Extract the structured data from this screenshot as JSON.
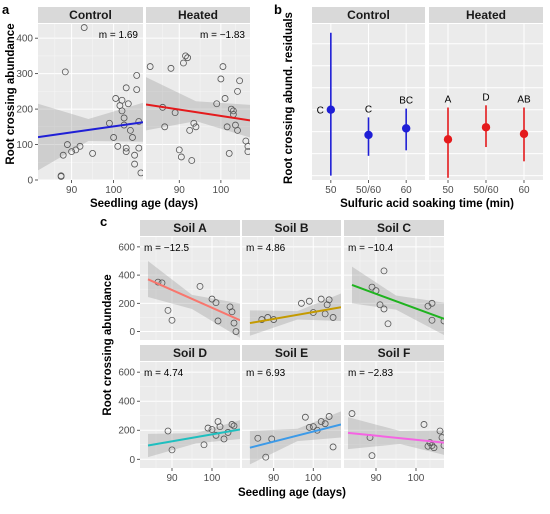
{
  "panel_labels": {
    "a": "a",
    "b": "b",
    "c": "c"
  },
  "colors": {
    "control": "#1f1fd6",
    "heated": "#e41a1c",
    "soil_A": "#f8766d",
    "soil_B": "#c49a00",
    "soil_C": "#1fb31f",
    "soil_D": "#1fbfbf",
    "soil_E": "#3c9ae8",
    "soil_F": "#f564e3"
  },
  "chart_data": [
    {
      "id": "a",
      "type": "scatter",
      "ylabel": "Root crossing abundance",
      "xlabel": "Seedling age (days)",
      "xlim": [
        82,
        107
      ],
      "ylim": [
        0,
        440
      ],
      "xticks": [
        90,
        100
      ],
      "yticks": [
        0,
        100,
        200,
        300,
        400
      ],
      "facets": [
        {
          "name": "Control",
          "annotation": "m = 1.69",
          "line": {
            "x0": 82,
            "y0": 121,
            "x1": 107,
            "y1": 163
          },
          "band_upper": [
            [
              82,
              215
            ],
            [
              94,
              172
            ],
            [
              107,
              218
            ]
          ],
          "band_lower": [
            [
              82,
              27
            ],
            [
              94,
              110
            ],
            [
              107,
              108
            ]
          ],
          "points": [
            [
              87.5,
              12
            ],
            [
              87.5,
              10
            ],
            [
              88,
              70
            ],
            [
              88.5,
              305
            ],
            [
              89,
              100
            ],
            [
              90,
              80
            ],
            [
              91,
              85
            ],
            [
              92,
              95
            ],
            [
              93,
              430
            ],
            [
              95,
              75
            ],
            [
              99,
              160
            ],
            [
              100,
              120
            ],
            [
              100.5,
              230
            ],
            [
              101,
              95
            ],
            [
              101.5,
              210
            ],
            [
              102,
              225
            ],
            [
              102,
              195
            ],
            [
              102.5,
              175
            ],
            [
              102.5,
              155
            ],
            [
              103,
              90
            ],
            [
              103,
              80
            ],
            [
              103,
              260
            ],
            [
              103.5,
              215
            ],
            [
              104,
              140
            ],
            [
              104.5,
              120
            ],
            [
              105,
              70
            ],
            [
              105,
              45
            ],
            [
              105.5,
              295
            ],
            [
              105.5,
              255
            ],
            [
              106,
              165
            ],
            [
              106,
              90
            ],
            [
              106.5,
              20
            ]
          ]
        },
        {
          "name": "Heated",
          "annotation": "m = −1.83",
          "line": {
            "x0": 82,
            "y0": 213,
            "x1": 107,
            "y1": 168
          },
          "band_upper": [
            [
              82,
              290
            ],
            [
              94,
              222
            ],
            [
              107,
              212
            ]
          ],
          "band_lower": [
            [
              82,
              140
            ],
            [
              94,
              166
            ],
            [
              107,
              120
            ]
          ],
          "points": [
            [
              83,
              320
            ],
            [
              86,
              205
            ],
            [
              86.5,
              150
            ],
            [
              88,
              315
            ],
            [
              89,
              190
            ],
            [
              90,
              85
            ],
            [
              90.5,
              65
            ],
            [
              91,
              330
            ],
            [
              91.5,
              350
            ],
            [
              92,
              345
            ],
            [
              92.5,
              140
            ],
            [
              93,
              55
            ],
            [
              93.5,
              160
            ],
            [
              94,
              150
            ],
            [
              99,
              215
            ],
            [
              100,
              285
            ],
            [
              100.5,
              320
            ],
            [
              101,
              230
            ],
            [
              101.5,
              150
            ],
            [
              102,
              75
            ],
            [
              102.5,
              200
            ],
            [
              103,
              195
            ],
            [
              103,
              185
            ],
            [
              103.5,
              155
            ],
            [
              104,
              140
            ],
            [
              104,
              250
            ],
            [
              104.5,
              280
            ],
            [
              106,
              110
            ],
            [
              106.5,
              95
            ],
            [
              106.5,
              80
            ]
          ]
        }
      ]
    },
    {
      "id": "b",
      "type": "pointrange",
      "ylabel": "Root crossing abund. residuals",
      "xlabel": "Sulfuric acid soaking time (min)",
      "ylim": [
        -2.2,
        4.9
      ],
      "xticks": [
        "50",
        "50/60",
        "60"
      ],
      "facets": [
        {
          "name": "Control",
          "color_key": "control",
          "points": [
            {
              "x": "50",
              "y": 1.0,
              "low": -2.0,
              "high": 4.5,
              "letter": "C"
            },
            {
              "x": "50/60",
              "y": -0.15,
              "low": -1.1,
              "high": 0.65,
              "letter": "C"
            },
            {
              "x": "60",
              "y": 0.15,
              "low": -0.85,
              "high": 1.05,
              "letter": "BC"
            }
          ]
        },
        {
          "name": "Heated",
          "color_key": "heated",
          "points": [
            {
              "x": "50",
              "y": -0.35,
              "low": -2.1,
              "high": 1.1,
              "letter": "A"
            },
            {
              "x": "50/60",
              "y": 0.2,
              "low": -0.7,
              "high": 1.2,
              "letter": "D"
            },
            {
              "x": "60",
              "y": -0.1,
              "low": -1.35,
              "high": 1.1,
              "letter": "AB"
            }
          ]
        }
      ]
    },
    {
      "id": "c",
      "type": "scatter",
      "ylabel": "Root crossing abundance",
      "xlabel": "Seedling age (days)",
      "xlim": [
        82,
        107
      ],
      "ylim": [
        -60,
        670
      ],
      "xticks": [
        90,
        100
      ],
      "yticks": [
        0,
        200,
        400,
        600
      ],
      "facets": [
        {
          "name": "Soil A",
          "color_key": "soil_A",
          "annotation": "m = −12.5",
          "line": {
            "x0": 84,
            "y0": 370,
            "x1": 107,
            "y1": 80
          },
          "band_upper": [
            [
              84,
              500
            ],
            [
              95,
              260
            ],
            [
              107,
              200
            ]
          ],
          "band_lower": [
            [
              84,
              245
            ],
            [
              95,
              160
            ],
            [
              107,
              -45
            ]
          ],
          "points": [
            [
              86.5,
              350
            ],
            [
              87.5,
              345
            ],
            [
              89,
              150
            ],
            [
              90,
              80
            ],
            [
              97,
              320
            ],
            [
              100,
              230
            ],
            [
              101,
              205
            ],
            [
              101.5,
              75
            ],
            [
              104.5,
              175
            ],
            [
              105,
              140
            ],
            [
              105.5,
              60
            ],
            [
              106,
              0
            ]
          ]
        },
        {
          "name": "Soil B",
          "color_key": "soil_B",
          "annotation": "m = 4.86",
          "line": {
            "x0": 84,
            "y0": 60,
            "x1": 107,
            "y1": 172
          },
          "band_upper": [
            [
              84,
              150
            ],
            [
              96,
              145
            ],
            [
              107,
              270
            ]
          ],
          "band_lower": [
            [
              84,
              -30
            ],
            [
              96,
              85
            ],
            [
              107,
              75
            ]
          ],
          "points": [
            [
              87,
              85
            ],
            [
              88.5,
              100
            ],
            [
              90,
              85
            ],
            [
              97,
              200
            ],
            [
              99,
              215
            ],
            [
              100,
              135
            ],
            [
              102,
              230
            ],
            [
              103,
              125
            ],
            [
              103.5,
              190
            ],
            [
              104,
              225
            ],
            [
              105,
              100
            ]
          ]
        },
        {
          "name": "Soil C",
          "color_key": "soil_C",
          "annotation": "m = −10.4",
          "line": {
            "x0": 84,
            "y0": 330,
            "x1": 107,
            "y1": 90
          },
          "band_upper": [
            [
              84,
              460
            ],
            [
              95,
              255
            ],
            [
              107,
              205
            ]
          ],
          "band_lower": [
            [
              84,
              200
            ],
            [
              95,
              155
            ],
            [
              107,
              -25
            ]
          ],
          "points": [
            [
              89,
              315
            ],
            [
              90,
              290
            ],
            [
              91,
              190
            ],
            [
              92,
              430
            ],
            [
              92,
              160
            ],
            [
              93,
              55
            ],
            [
              103,
              180
            ],
            [
              104,
              200
            ],
            [
              104,
              80
            ],
            [
              107,
              75
            ]
          ]
        },
        {
          "name": "Soil D",
          "color_key": "soil_D",
          "annotation": "m = 4.74",
          "line": {
            "x0": 84,
            "y0": 95,
            "x1": 107,
            "y1": 205
          },
          "band_upper": [
            [
              84,
              175
            ],
            [
              96,
              180
            ],
            [
              107,
              270
            ]
          ],
          "band_lower": [
            [
              84,
              15
            ],
            [
              96,
              110
            ],
            [
              107,
              140
            ]
          ],
          "points": [
            [
              89,
              195
            ],
            [
              90,
              65
            ],
            [
              98,
              100
            ],
            [
              99,
              215
            ],
            [
              100,
              205
            ],
            [
              101,
              165
            ],
            [
              101.5,
              260
            ],
            [
              102,
              225
            ],
            [
              103,
              140
            ],
            [
              104,
              185
            ],
            [
              105,
              240
            ],
            [
              105.5,
              230
            ]
          ]
        },
        {
          "name": "Soil E",
          "color_key": "soil_E",
          "annotation": "m = 6.93",
          "line": {
            "x0": 84,
            "y0": 80,
            "x1": 107,
            "y1": 240
          },
          "band_upper": [
            [
              84,
              195
            ],
            [
              96,
              210
            ],
            [
              107,
              330
            ]
          ],
          "band_lower": [
            [
              84,
              -35
            ],
            [
              96,
              125
            ],
            [
              107,
              150
            ]
          ],
          "points": [
            [
              86,
              145
            ],
            [
              88,
              15
            ],
            [
              89.5,
              140
            ],
            [
              98,
              290
            ],
            [
              99,
              220
            ],
            [
              100,
              225
            ],
            [
              101,
              200
            ],
            [
              102,
              260
            ],
            [
              103,
              245
            ],
            [
              104,
              295
            ],
            [
              105,
              85
            ]
          ]
        },
        {
          "name": "Soil F",
          "color_key": "soil_F",
          "annotation": "m = −2.83",
          "line": {
            "x0": 83,
            "y0": 182,
            "x1": 107,
            "y1": 115
          },
          "band_upper": [
            [
              83,
              290
            ],
            [
              96,
              195
            ],
            [
              107,
              200
            ]
          ],
          "band_lower": [
            [
              83,
              70
            ],
            [
              96,
              105
            ],
            [
              107,
              30
            ]
          ],
          "points": [
            [
              84,
              315
            ],
            [
              88.5,
              150
            ],
            [
              89,
              25
            ],
            [
              102,
              240
            ],
            [
              103,
              90
            ],
            [
              103.5,
              115
            ],
            [
              104,
              95
            ],
            [
              104.5,
              80
            ],
            [
              106,
              195
            ],
            [
              106.5,
              150
            ],
            [
              107,
              95
            ]
          ]
        }
      ]
    }
  ]
}
